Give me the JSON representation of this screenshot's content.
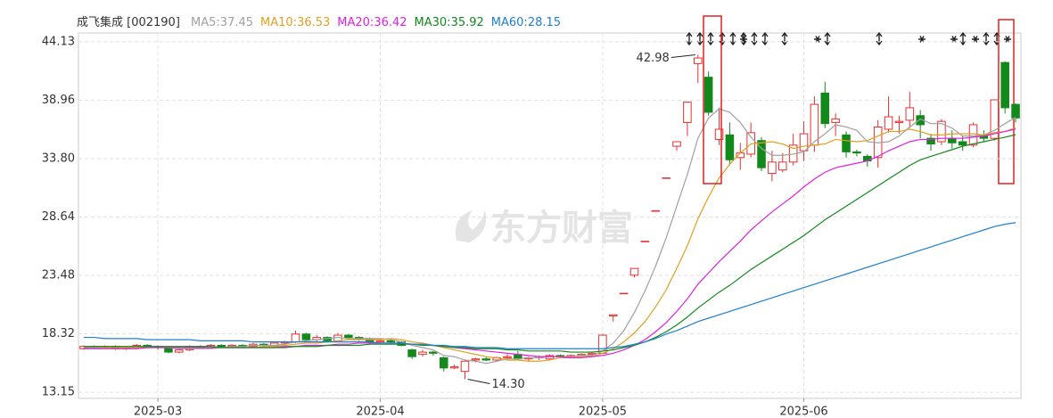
{
  "chart_data": {
    "type": "candlestick",
    "title": "成飞集成 [002190]",
    "watermark": "东方财富",
    "categories": [
      null,
      null,
      null,
      null,
      null,
      null,
      null,
      "2025-03",
      null,
      null,
      null,
      null,
      null,
      null,
      null,
      null,
      null,
      null,
      null,
      null,
      null,
      null,
      null,
      null,
      null,
      null,
      null,
      null,
      "2025-04",
      null,
      null,
      null,
      null,
      null,
      null,
      null,
      null,
      null,
      null,
      null,
      null,
      null,
      null,
      null,
      null,
      null,
      null,
      null,
      null,
      "2025-05",
      null,
      null,
      null,
      null,
      null,
      null,
      null,
      null,
      null,
      null,
      null,
      null,
      null,
      null,
      null,
      null,
      null,
      null,
      "2025-06",
      null,
      null,
      null,
      null,
      null,
      null,
      null,
      null,
      null,
      null,
      null,
      null,
      null,
      null,
      null,
      null,
      null,
      null,
      null,
      null
    ],
    "open": [
      17.0,
      17.2,
      17.1,
      17.2,
      17.0,
      17.1,
      17.3,
      17.2,
      17.1,
      16.7,
      16.9,
      17.2,
      17.1,
      17.3,
      17.2,
      17.3,
      17.2,
      17.4,
      17.3,
      17.5,
      17.6,
      18.3,
      17.8,
      18.0,
      17.7,
      18.2,
      18.0,
      17.9,
      17.6,
      17.7,
      17.6,
      16.9,
      16.5,
      16.7,
      16.2,
      15.3,
      15.0,
      16.0,
      16.1,
      16.0,
      16.2,
      16.5,
      16.1,
      16.2,
      16.1,
      16.4,
      16.3,
      16.4,
      16.5,
      16.6,
      19.9,
      21.9,
      23.5,
      26.5,
      29.2,
      32.1,
      34.9,
      37.0,
      42.2,
      41.0,
      35.5,
      35.9,
      33.9,
      34.2,
      35.4,
      32.5,
      32.8,
      33.5,
      34.5,
      35.0,
      39.6,
      37.0,
      35.9,
      34.4,
      34.0,
      33.9,
      36.4,
      37.0,
      37.2,
      37.6,
      35.6,
      35.3,
      35.6,
      35.3,
      35.0,
      35.8,
      35.6,
      42.3,
      38.6
    ],
    "close": [
      17.2,
      17.1,
      17.2,
      17.0,
      17.1,
      17.3,
      17.2,
      17.1,
      16.7,
      16.9,
      17.2,
      17.1,
      17.3,
      17.2,
      17.3,
      17.2,
      17.4,
      17.3,
      17.5,
      17.6,
      18.3,
      17.8,
      18.0,
      17.7,
      18.2,
      18.0,
      17.9,
      17.6,
      17.7,
      17.6,
      17.3,
      16.3,
      16.7,
      16.6,
      15.3,
      15.4,
      15.9,
      16.1,
      16.0,
      16.2,
      16.3,
      16.1,
      16.2,
      16.3,
      16.4,
      16.3,
      16.4,
      16.5,
      16.6,
      18.2,
      20.0,
      21.9,
      24.1,
      26.5,
      29.2,
      32.1,
      35.3,
      38.8,
      42.7,
      37.9,
      36.4,
      33.7,
      34.3,
      36.1,
      33.0,
      33.5,
      33.5,
      35.0,
      36.0,
      38.6,
      36.9,
      37.3,
      34.4,
      34.3,
      33.6,
      36.6,
      37.5,
      37.1,
      38.3,
      36.8,
      35.1,
      37.1,
      35.2,
      35.0,
      36.8,
      35.6,
      39.0,
      38.3,
      37.4
    ],
    "high": [
      17.3,
      17.3,
      17.3,
      17.3,
      17.2,
      17.4,
      17.4,
      17.3,
      17.2,
      17.0,
      17.3,
      17.3,
      17.4,
      17.4,
      17.4,
      17.4,
      17.5,
      17.5,
      17.6,
      17.7,
      18.6,
      18.4,
      18.2,
      18.1,
      18.4,
      18.3,
      18.1,
      18.0,
      17.9,
      17.8,
      17.7,
      17.0,
      16.9,
      16.8,
      16.3,
      15.6,
      16.0,
      16.2,
      16.3,
      16.3,
      16.5,
      16.8,
      16.3,
      16.4,
      16.5,
      16.5,
      16.5,
      16.6,
      16.7,
      18.3,
      20.0,
      21.9,
      24.1,
      26.5,
      29.2,
      32.1,
      35.3,
      38.8,
      42.98,
      41.5,
      38.3,
      37.0,
      35.2,
      37.0,
      35.7,
      34.5,
      34.3,
      36.0,
      37.1,
      39.3,
      40.6,
      37.8,
      36.2,
      34.6,
      34.2,
      37.2,
      39.3,
      37.6,
      39.7,
      38.1,
      36.0,
      37.3,
      36.3,
      35.8,
      37.0,
      36.3,
      39.0,
      42.4,
      38.7
    ],
    "low": [
      16.9,
      17.0,
      17.0,
      16.9,
      16.9,
      17.0,
      17.1,
      16.9,
      16.6,
      16.6,
      16.8,
      17.0,
      17.0,
      17.1,
      17.1,
      17.1,
      17.1,
      17.2,
      17.2,
      17.4,
      17.5,
      17.6,
      17.6,
      17.6,
      17.6,
      17.8,
      17.7,
      17.4,
      17.5,
      17.4,
      17.2,
      16.1,
      16.3,
      16.4,
      15.0,
      15.2,
      14.3,
      15.8,
      15.9,
      15.9,
      16.1,
      16.0,
      15.9,
      16.0,
      16.0,
      16.2,
      16.2,
      16.3,
      16.4,
      16.6,
      19.4,
      21.9,
      23.3,
      26.5,
      29.2,
      32.1,
      34.5,
      35.8,
      40.5,
      37.6,
      35.0,
      33.2,
      32.8,
      33.9,
      32.7,
      31.8,
      32.6,
      33.2,
      33.6,
      34.4,
      36.5,
      35.8,
      33.9,
      34.0,
      33.1,
      33.0,
      36.1,
      36.0,
      36.5,
      35.6,
      34.5,
      35.0,
      34.7,
      34.5,
      34.8,
      35.3,
      35.4,
      37.8,
      37.0
    ],
    "up_color": "#e8302f",
    "down_color": "#13891b",
    "series": [
      {
        "name": "MA5:37.45",
        "color": "#a0a0a0",
        "values": [
          17.1,
          17.1,
          17.1,
          17.1,
          17.1,
          17.1,
          17.2,
          17.2,
          17.1,
          17.0,
          17.0,
          17.0,
          17.0,
          17.1,
          17.2,
          17.2,
          17.3,
          17.3,
          17.3,
          17.4,
          17.6,
          17.7,
          17.8,
          17.9,
          18.0,
          17.9,
          17.9,
          17.9,
          17.9,
          17.8,
          17.6,
          17.3,
          17.1,
          16.9,
          16.4,
          16.3,
          16.0,
          15.9,
          15.7,
          15.9,
          16.1,
          16.1,
          16.2,
          16.2,
          16.3,
          16.3,
          16.3,
          16.4,
          16.4,
          16.8,
          17.5,
          18.6,
          20.2,
          22.1,
          24.3,
          26.8,
          29.6,
          32.4,
          35.6,
          37.4,
          38.2,
          37.9,
          37.0,
          35.7,
          34.7,
          34.1,
          34.1,
          34.2,
          34.4,
          35.3,
          36.0,
          36.8,
          36.6,
          36.3,
          35.3,
          35.2,
          35.3,
          35.8,
          36.6,
          37.3,
          36.9,
          36.9,
          36.5,
          35.8,
          35.8,
          35.9,
          36.3,
          36.9,
          37.45
        ]
      },
      {
        "name": "MA10:36.53",
        "color": "#e0a020",
        "values": [
          17.2,
          17.2,
          17.1,
          17.1,
          17.1,
          17.1,
          17.1,
          17.1,
          17.1,
          17.1,
          17.1,
          17.1,
          17.1,
          17.1,
          17.1,
          17.1,
          17.1,
          17.2,
          17.2,
          17.3,
          17.4,
          17.5,
          17.5,
          17.6,
          17.7,
          17.8,
          17.8,
          17.8,
          17.8,
          17.9,
          17.8,
          17.6,
          17.5,
          17.3,
          17.1,
          16.9,
          16.7,
          16.5,
          16.3,
          16.2,
          16.0,
          16.0,
          15.9,
          15.9,
          16.0,
          16.2,
          16.2,
          16.3,
          16.3,
          16.6,
          17.0,
          17.6,
          18.4,
          19.4,
          20.7,
          22.2,
          24.1,
          26.1,
          28.5,
          30.4,
          32.1,
          33.3,
          34.3,
          35.1,
          35.2,
          35.3,
          35.1,
          34.7,
          34.9,
          35.0,
          35.1,
          35.5,
          35.4,
          35.3,
          35.4,
          35.8,
          36.2,
          36.2,
          36.4,
          36.2,
          35.9,
          35.9,
          36.0,
          36.0,
          36.0,
          35.9,
          36.1,
          36.2,
          36.53
        ]
      },
      {
        "name": "MA20:36.42",
        "color": "#e020e0",
        "values": [
          17.0,
          17.0,
          17.0,
          17.0,
          17.0,
          17.0,
          17.1,
          17.1,
          17.1,
          17.1,
          17.1,
          17.1,
          17.1,
          17.1,
          17.1,
          17.1,
          17.1,
          17.1,
          17.1,
          17.2,
          17.2,
          17.3,
          17.3,
          17.3,
          17.4,
          17.4,
          17.5,
          17.5,
          17.5,
          17.5,
          17.5,
          17.4,
          17.4,
          17.3,
          17.2,
          17.1,
          17.0,
          16.9,
          16.8,
          16.7,
          16.6,
          16.5,
          16.4,
          16.3,
          16.3,
          16.3,
          16.2,
          16.2,
          16.3,
          16.4,
          16.6,
          16.9,
          17.3,
          17.8,
          18.5,
          19.3,
          20.3,
          21.4,
          22.7,
          23.7,
          24.7,
          25.6,
          26.5,
          27.5,
          28.3,
          29.1,
          29.8,
          30.5,
          31.3,
          32.0,
          32.6,
          33.0,
          33.2,
          33.4,
          33.6,
          34.0,
          34.5,
          34.9,
          35.3,
          35.5,
          35.5,
          35.6,
          35.6,
          35.6,
          35.7,
          35.8,
          36.0,
          36.2,
          36.42
        ]
      },
      {
        "name": "MA30:35.92",
        "color": "#13891b",
        "values": [
          17.2,
          17.2,
          17.2,
          17.2,
          17.2,
          17.2,
          17.2,
          17.2,
          17.2,
          17.2,
          17.2,
          17.2,
          17.2,
          17.1,
          17.1,
          17.1,
          17.1,
          17.1,
          17.1,
          17.1,
          17.2,
          17.2,
          17.2,
          17.3,
          17.3,
          17.3,
          17.3,
          17.4,
          17.4,
          17.4,
          17.4,
          17.4,
          17.3,
          17.3,
          17.2,
          17.1,
          17.1,
          17.0,
          17.0,
          17.0,
          16.9,
          16.9,
          16.8,
          16.8,
          16.8,
          16.8,
          16.7,
          16.7,
          16.7,
          16.8,
          16.9,
          17.1,
          17.3,
          17.6,
          18.0,
          18.5,
          19.1,
          19.8,
          20.6,
          21.3,
          22.0,
          22.6,
          23.3,
          24.0,
          24.6,
          25.2,
          25.8,
          26.4,
          27.0,
          27.7,
          28.4,
          29.0,
          29.6,
          30.2,
          30.8,
          31.4,
          32.0,
          32.6,
          33.2,
          33.7,
          34.0,
          34.3,
          34.6,
          34.9,
          35.1,
          35.3,
          35.5,
          35.7,
          35.92
        ]
      },
      {
        "name": "MA60:28.15",
        "color": "#1e7fd0",
        "values": [
          18.0,
          18.0,
          17.9,
          17.9,
          17.9,
          17.9,
          17.8,
          17.8,
          17.8,
          17.8,
          17.8,
          17.7,
          17.7,
          17.7,
          17.7,
          17.7,
          17.6,
          17.6,
          17.6,
          17.6,
          17.6,
          17.6,
          17.6,
          17.6,
          17.6,
          17.6,
          17.6,
          17.6,
          17.5,
          17.5,
          17.5,
          17.4,
          17.4,
          17.3,
          17.3,
          17.2,
          17.2,
          17.1,
          17.1,
          17.1,
          17.0,
          17.0,
          17.0,
          17.0,
          17.0,
          17.0,
          17.0,
          17.0,
          17.0,
          17.0,
          17.1,
          17.2,
          17.4,
          17.6,
          17.9,
          18.3,
          18.6,
          19.0,
          19.4,
          19.7,
          20.0,
          20.3,
          20.6,
          20.9,
          21.2,
          21.5,
          21.8,
          22.1,
          22.4,
          22.7,
          23.0,
          23.3,
          23.6,
          23.9,
          24.2,
          24.5,
          24.8,
          25.1,
          25.4,
          25.7,
          26.0,
          26.3,
          26.6,
          26.9,
          27.2,
          27.5,
          27.8,
          28.0,
          28.15
        ]
      }
    ],
    "ylim": [
      12.61,
      44.91
    ],
    "yticks": [
      44.13,
      38.96,
      {
        "value": 33.8,
        "label": "33.80"
      },
      28.64,
      23.48,
      18.32,
      13.15
    ],
    "grid": true,
    "annotations": [
      {
        "value": 42.98,
        "label": "42.98",
        "at": "high"
      },
      {
        "value": 14.3,
        "label": "14.30",
        "at": "low"
      }
    ]
  }
}
